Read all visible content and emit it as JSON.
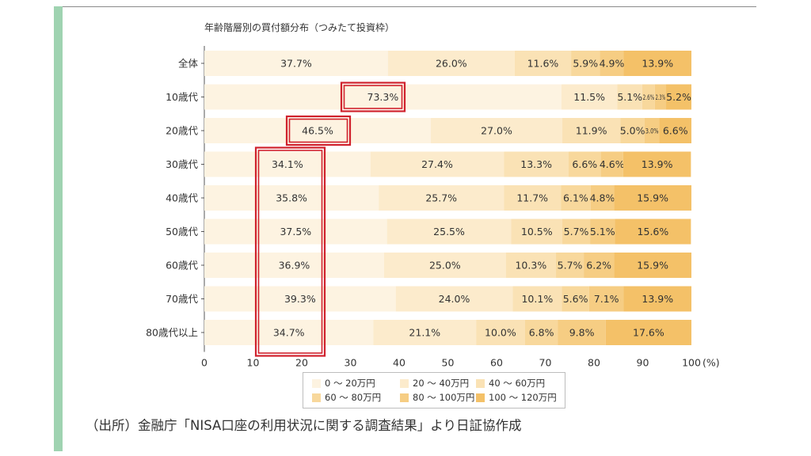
{
  "chart_data": {
    "type": "bar",
    "orientation": "horizontal",
    "stacked": true,
    "title": "年齢階層別の買付額分布（つみたて投資枠）",
    "categories": [
      "全体",
      "10歳代",
      "20歳代",
      "30歳代",
      "40歳代",
      "50歳代",
      "60歳代",
      "70歳代",
      "80歳代以上"
    ],
    "series": [
      {
        "name": "0 ～ 20万円",
        "color": "#fdf3e1",
        "values": [
          37.7,
          73.3,
          46.5,
          34.1,
          35.8,
          37.5,
          36.9,
          39.3,
          34.7
        ],
        "labels": [
          "37.7%",
          "73.3%",
          "46.5%",
          "34.1%",
          "35.8%",
          "37.5%",
          "36.9%",
          "39.3%",
          "34.7%"
        ]
      },
      {
        "name": "20 ～ 40万円",
        "color": "#fcebcc",
        "values": [
          26.0,
          11.5,
          27.0,
          27.4,
          25.7,
          25.5,
          25.0,
          24.0,
          21.1
        ],
        "labels": [
          "26.0%",
          "11.5%",
          "27.0%",
          "27.4%",
          "25.7%",
          "25.5%",
          "25.0%",
          "24.0%",
          "21.1%"
        ]
      },
      {
        "name": "40 ～ 60万円",
        "color": "#fae2b5",
        "values": [
          11.6,
          5.1,
          11.9,
          13.3,
          11.7,
          10.5,
          10.3,
          10.1,
          10.0
        ],
        "labels": [
          "11.6%",
          "5.1%",
          "11.9%",
          "13.3%",
          "11.7%",
          "10.5%",
          "10.3%",
          "10.1%",
          "10.0%"
        ]
      },
      {
        "name": "60 ～ 80万円",
        "color": "#f8d89c",
        "values": [
          5.9,
          2.6,
          5.0,
          6.6,
          6.1,
          5.7,
          5.7,
          5.6,
          6.8
        ],
        "labels": [
          "5.9%",
          "2.6%",
          "5.0%",
          "6.6%",
          "6.1%",
          "5.7%",
          "5.7%",
          "5.6%",
          "6.8%"
        ]
      },
      {
        "name": "80 ～ 100万円",
        "color": "#f6cd83",
        "values": [
          4.9,
          2.3,
          3.0,
          4.6,
          4.8,
          5.1,
          6.2,
          7.1,
          9.8
        ],
        "labels": [
          "4.9%",
          "2.3%",
          "3.0%",
          "4.6%",
          "4.8%",
          "5.1%",
          "6.2%",
          "7.1%",
          "9.8%"
        ]
      },
      {
        "name": "100 ～ 120万円",
        "color": "#f4c168",
        "values": [
          13.9,
          5.2,
          6.6,
          13.9,
          15.9,
          15.6,
          15.9,
          13.9,
          17.6
        ],
        "labels": [
          "13.9%",
          "5.2%",
          "6.6%",
          "13.9%",
          "15.9%",
          "15.6%",
          "15.9%",
          "13.9%",
          "17.6%"
        ]
      }
    ],
    "xticks": [
      "0",
      "10",
      "20",
      "30",
      "40",
      "50",
      "60",
      "70",
      "80",
      "90",
      "100"
    ],
    "xunit": "(%)",
    "xlim": [
      0,
      100
    ],
    "highlight_color": "#d0222d",
    "highlight_boxes": [
      {
        "category": "10歳代"
      },
      {
        "category": "20歳代"
      },
      {
        "categories": [
          "30歳代",
          "80歳代以上"
        ]
      }
    ]
  },
  "legend": {
    "items": [
      "0 ～ 20万円",
      "20 ～ 40万円",
      "40 ～ 60万円",
      "60 ～ 80万円",
      "80 ～ 100万円",
      "100 ～ 120万円"
    ]
  },
  "source": "（出所）金融庁「NISA口座の利用状況に関する調査結果」より日証協作成"
}
